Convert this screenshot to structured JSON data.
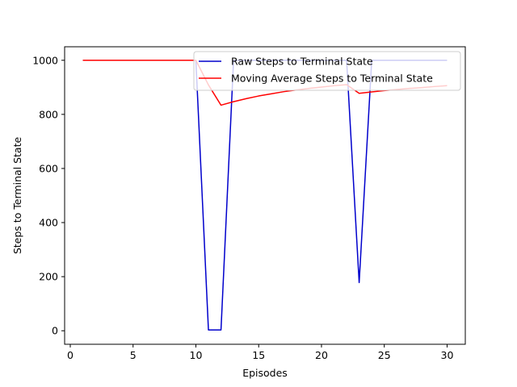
{
  "chart_data": {
    "type": "line",
    "title": "",
    "xlabel": "Episodes",
    "ylabel": "Steps to Terminal State",
    "xlim": [
      -0.45,
      31.45
    ],
    "ylim": [
      -50,
      1050
    ],
    "xticks": [
      0,
      5,
      10,
      15,
      20,
      25,
      30
    ],
    "yticks": [
      0,
      200,
      400,
      600,
      800,
      1000
    ],
    "grid": false,
    "legend_position": "upper-right",
    "x": [
      1,
      2,
      3,
      4,
      5,
      6,
      7,
      8,
      9,
      10,
      11,
      12,
      13,
      14,
      15,
      16,
      17,
      18,
      19,
      20,
      21,
      22,
      23,
      24,
      25,
      26,
      27,
      28,
      29,
      30
    ],
    "series": [
      {
        "name": "Raw Steps to Terminal State",
        "color": "#0000cc",
        "values": [
          1000,
          1000,
          1000,
          1000,
          1000,
          1000,
          1000,
          1000,
          1000,
          1000,
          3,
          3,
          1000,
          1000,
          1000,
          1000,
          1000,
          1000,
          1000,
          1000,
          1000,
          1000,
          178,
          1000,
          1000,
          1000,
          1000,
          1000,
          1000,
          1000
        ]
      },
      {
        "name": "Moving Average Steps to Terminal State",
        "color": "#ff0000",
        "values": [
          1000,
          1000,
          1000,
          1000,
          1000,
          1000,
          1000,
          1000,
          1000,
          1000,
          909,
          834,
          847,
          858,
          868,
          876,
          884,
          890,
          896,
          901,
          906,
          910,
          878,
          883,
          888,
          892,
          896,
          899,
          903,
          906
        ]
      }
    ]
  }
}
